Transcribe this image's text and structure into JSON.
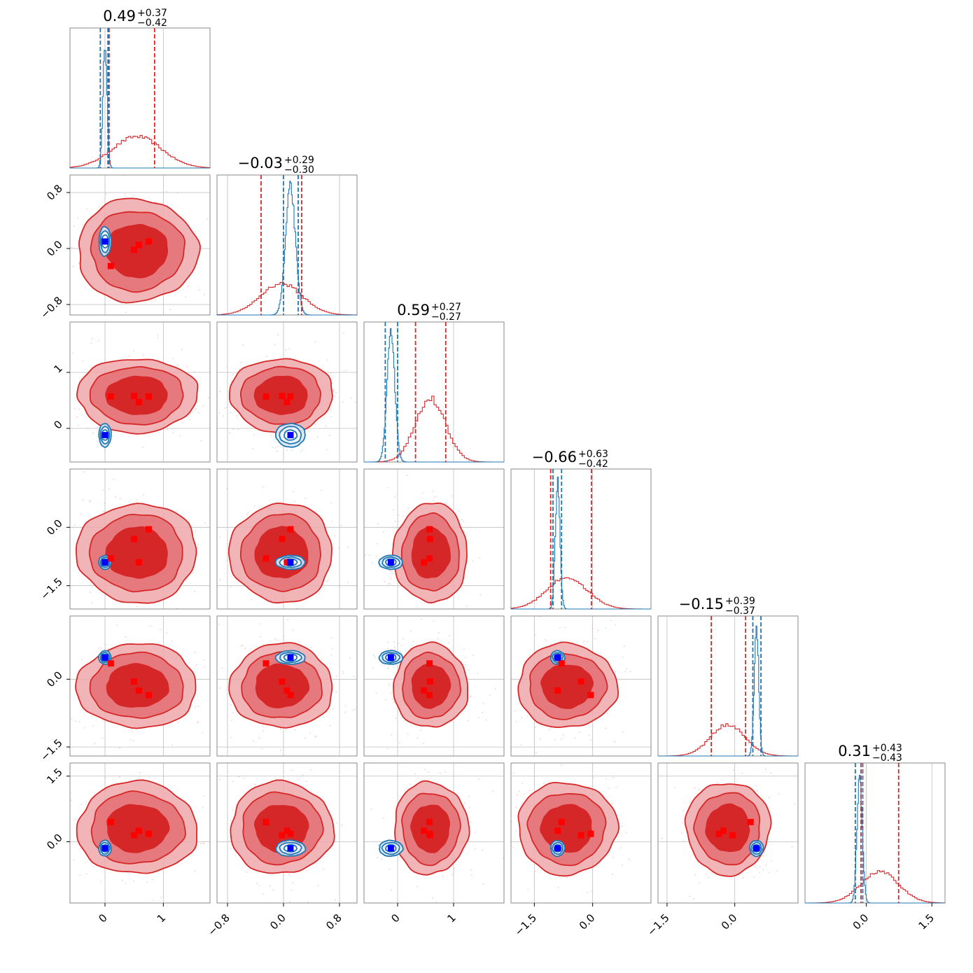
{
  "chart_data": {
    "type": "corner",
    "n_params": 6,
    "colors": {
      "red": "#d62728",
      "blue": "#1f77b4",
      "marker_red": "#ff0000",
      "marker_blue": "#0000ff",
      "grid": "#bdbdbd",
      "frame": "#888888"
    },
    "params": [
      {
        "title": {
          "main": "0.49",
          "plus": "+0.37",
          "minus": "−0.42"
        },
        "range": [
          -0.6,
          1.8
        ],
        "ticks": [
          0,
          1
        ],
        "tick_labels": [
          "0",
          "1"
        ],
        "red": {
          "mean": 0.55,
          "sd": 0.42,
          "lines": [
            0.07,
            0.85
          ]
        },
        "blue": {
          "mean": 0.0,
          "sd": 0.035,
          "lines": [
            -0.08,
            0.05
          ]
        }
      },
      {
        "title": {
          "main": "−0.03",
          "plus": "+0.29",
          "minus": "−0.30"
        },
        "range": [
          -0.95,
          1.05
        ],
        "ticks": [
          -0.8,
          0.0,
          0.8
        ],
        "tick_labels": [
          "−0.8",
          "0.0",
          "0.8"
        ],
        "red": {
          "mean": -0.03,
          "sd": 0.3,
          "lines": [
            -0.32,
            0.26
          ]
        },
        "blue": {
          "mean": 0.1,
          "sd": 0.07,
          "lines": [
            0.0,
            0.21
          ]
        }
      },
      {
        "title": {
          "main": "0.59",
          "plus": "+0.27",
          "minus": "−0.27"
        },
        "range": [
          -0.6,
          1.9
        ],
        "ticks": [
          0,
          1
        ],
        "tick_labels": [
          "0",
          "1"
        ],
        "red": {
          "mean": 0.59,
          "sd": 0.27,
          "lines": [
            0.32,
            0.86
          ]
        },
        "blue": {
          "mean": -0.12,
          "sd": 0.07,
          "lines": [
            -0.22,
            0.0
          ]
        }
      },
      {
        "title": {
          "main": "−0.66",
          "plus": "+0.63",
          "minus": "−0.42"
        },
        "range": [
          -2.1,
          1.5
        ],
        "ticks": [
          -1.5,
          0.0
        ],
        "tick_labels": [
          "−1.5",
          "0.0"
        ],
        "red": {
          "mean": -0.66,
          "sd": 0.52,
          "lines": [
            -1.08,
            -0.03
          ]
        },
        "blue": {
          "mean": -0.9,
          "sd": 0.06,
          "lines": [
            -1.02,
            -0.8
          ]
        }
      },
      {
        "title": {
          "main": "−0.15",
          "plus": "+0.39",
          "minus": "−0.37"
        },
        "range": [
          -1.7,
          1.4
        ],
        "ticks": [
          -1.5,
          0.0
        ],
        "tick_labels": [
          "−1.5",
          "0.0"
        ],
        "red": {
          "mean": -0.15,
          "sd": 0.38,
          "lines": [
            -0.52,
            0.24
          ]
        },
        "blue": {
          "mean": 0.48,
          "sd": 0.05,
          "lines": [
            0.4,
            0.58
          ]
        }
      },
      {
        "title": {
          "main": "0.31",
          "plus": "+0.43",
          "minus": "−0.43"
        },
        "range": [
          -1.4,
          1.8
        ],
        "ticks": [
          0.0,
          1.5
        ],
        "tick_labels": [
          "0.0",
          "1.5"
        ],
        "red": {
          "mean": 0.31,
          "sd": 0.43,
          "lines": [
            -0.12,
            0.74
          ]
        },
        "blue": {
          "mean": -0.15,
          "sd": 0.06,
          "lines": [
            -0.25,
            -0.08
          ]
        }
      }
    ],
    "blue_marker": [
      0.0,
      0.1,
      -0.12,
      -0.9,
      0.48,
      -0.15
    ],
    "red_markers": [
      [
        0.1,
        -0.25,
        0.57,
        -0.8,
        0.35,
        0.45
      ],
      [
        0.5,
        -0.02,
        0.58,
        -0.3,
        -0.05,
        0.15
      ],
      [
        0.58,
        0.05,
        0.47,
        -0.9,
        -0.25,
        0.25
      ],
      [
        0.75,
        0.1,
        0.57,
        -0.05,
        -0.35,
        0.18
      ]
    ]
  }
}
